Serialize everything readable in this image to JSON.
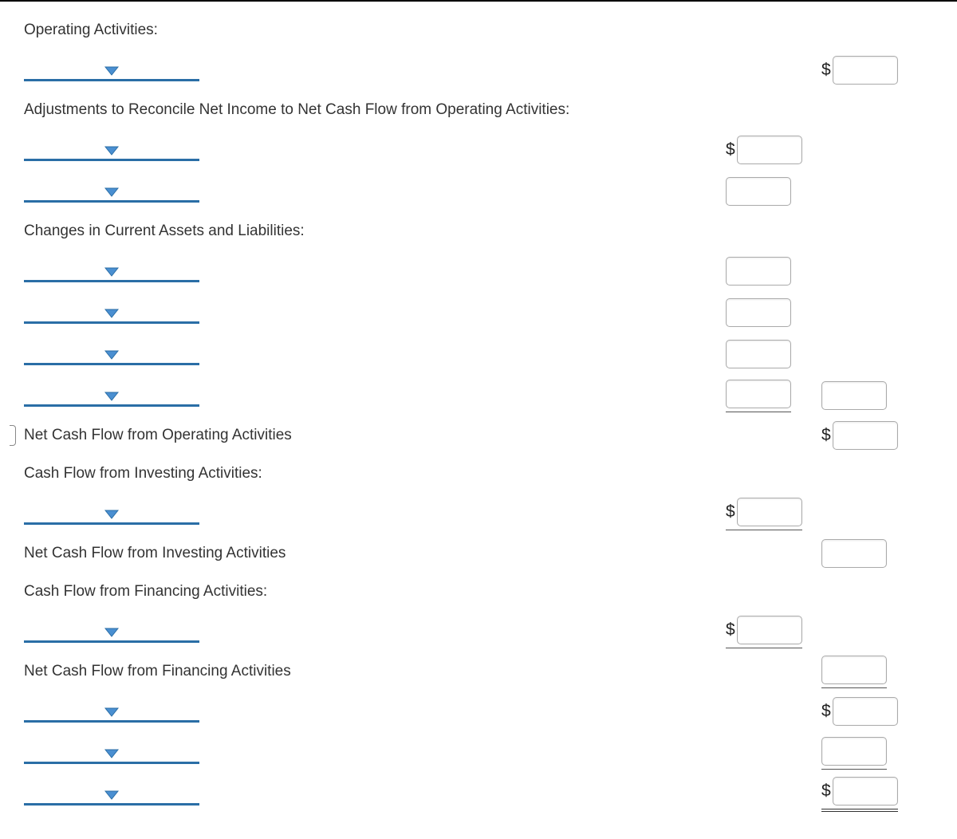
{
  "colors": {
    "dropdown_border": "#2a6ea6",
    "caret_fill": "#4a8fd1",
    "caret_stroke": "#2a6ea6",
    "top_rule": "#000000",
    "input_border": "#aaaaaa"
  },
  "labels": {
    "operating_header": "Operating Activities:",
    "adjustments_header": "Adjustments to Reconcile Net Income to Net Cash Flow from Operating Activities:",
    "changes_header": "Changes in Current Assets and Liabilities:",
    "net_operating": "Net Cash Flow from Operating Activities",
    "investing_header": "Cash Flow from Investing Activities:",
    "net_investing": "Net Cash Flow from Investing Activities",
    "financing_header": "Cash Flow from Financing Activities:",
    "net_financing": "Net Cash Flow from Financing Activities",
    "dollar": "$"
  },
  "rows": [
    {
      "kind": "text",
      "textKey": "operating_header"
    },
    {
      "kind": "dd",
      "colB": {
        "dollar": true
      }
    },
    {
      "kind": "text",
      "textKey": "adjustments_header"
    },
    {
      "kind": "dd",
      "colA": {
        "dollar": true
      }
    },
    {
      "kind": "dd",
      "colA": {}
    },
    {
      "kind": "text",
      "textKey": "changes_header"
    },
    {
      "kind": "dd",
      "colA": {}
    },
    {
      "kind": "dd",
      "colA": {}
    },
    {
      "kind": "dd",
      "colA": {}
    },
    {
      "kind": "dd",
      "colA": {
        "underline": "single"
      },
      "colB": {}
    },
    {
      "kind": "text",
      "textKey": "net_operating",
      "colB": {
        "dollar": true
      },
      "stubby": true
    },
    {
      "kind": "text",
      "textKey": "investing_header"
    },
    {
      "kind": "dd",
      "colA": {
        "dollar": true,
        "underline": "single"
      }
    },
    {
      "kind": "text",
      "textKey": "net_investing",
      "colB": {}
    },
    {
      "kind": "text",
      "textKey": "financing_header"
    },
    {
      "kind": "dd",
      "colA": {
        "dollar": true,
        "underline": "single"
      }
    },
    {
      "kind": "text",
      "textKey": "net_financing",
      "colB": {
        "underline": "single"
      }
    },
    {
      "kind": "dd",
      "colB": {
        "dollar": true
      }
    },
    {
      "kind": "dd",
      "colB": {
        "underline": "single"
      }
    },
    {
      "kind": "dd",
      "colB": {
        "dollar": true,
        "underline": "double"
      }
    }
  ]
}
